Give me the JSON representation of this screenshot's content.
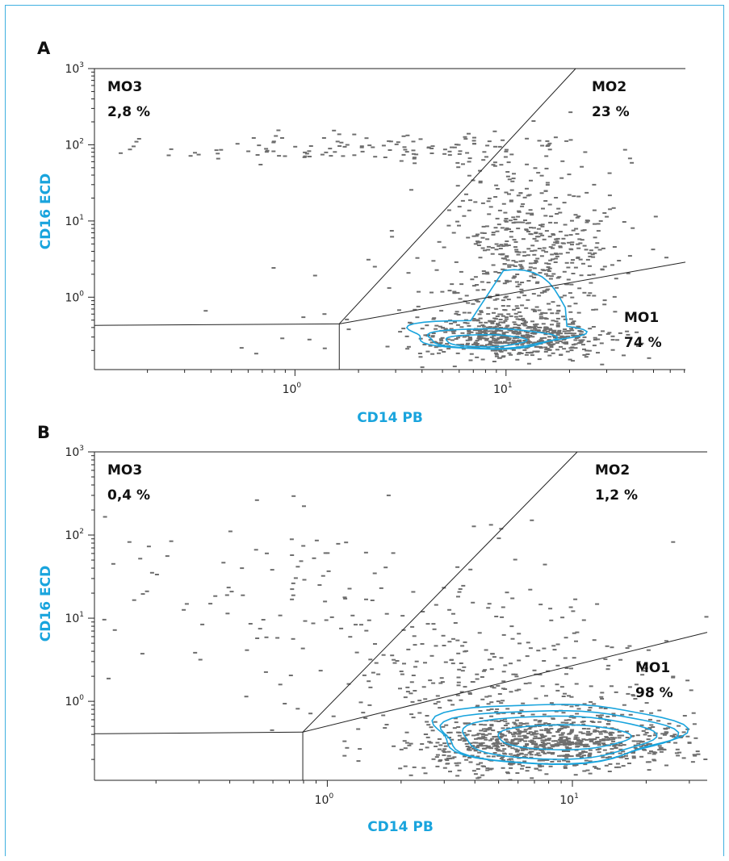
{
  "colors": {
    "frame": "#3fb0e0",
    "axis_title": "#19a4dd",
    "events": "#6e6e6e",
    "contour": "#19a4dd",
    "gate_line": "#222222"
  },
  "chart_data": [
    {
      "panel": "A",
      "type": "scatter",
      "subtype": "flow-cytometry dot plot with contours",
      "xlabel": "CD14 PB",
      "ylabel": "CD16 ECD",
      "x_scale": "log",
      "y_scale": "log",
      "xlim_log10": [
        -0.95,
        1.85
      ],
      "ylim_log10": [
        -0.95,
        3
      ],
      "x_ticks": [
        {
          "base": "10",
          "exp": "0",
          "log10": 0
        },
        {
          "base": "10",
          "exp": "1",
          "log10": 1
        }
      ],
      "y_ticks": [
        {
          "base": "10",
          "exp": "0",
          "log10": 0
        },
        {
          "base": "10",
          "exp": "1",
          "log10": 1
        },
        {
          "base": "10",
          "exp": "2",
          "log10": 2
        },
        {
          "base": "10",
          "exp": "3",
          "log10": 3
        }
      ],
      "gates": [
        {
          "name": "MO3",
          "value": "2,8 %"
        },
        {
          "name": "MO2",
          "value": "23 %"
        },
        {
          "name": "MO1",
          "value": "74 %"
        }
      ],
      "gate_vertex_log10": [
        0.21,
        -0.35
      ],
      "gate_lines_log10": {
        "left": [
          [
            -0.95,
            -0.37
          ],
          [
            0.21,
            -0.35
          ]
        ],
        "vertical": [
          [
            0.21,
            -0.95
          ],
          [
            0.21,
            -0.35
          ]
        ],
        "diagonal": [
          [
            0.21,
            -0.35
          ],
          [
            1.33,
            3.0
          ]
        ],
        "lower": [
          [
            0.21,
            -0.35
          ],
          [
            1.85,
            0.46
          ]
        ]
      },
      "populations": [
        {
          "mx": 1.02,
          "my": -0.52,
          "sx": 0.22,
          "sy": 0.14,
          "n": 560
        },
        {
          "mx": 1.12,
          "my": 0.55,
          "sx": 0.2,
          "sy": 0.6,
          "n": 520
        },
        {
          "mx": 0.45,
          "my": 1.95,
          "sx": 0.55,
          "sy": 0.1,
          "n": 140
        },
        {
          "mx": 0.6,
          "my": -0.1,
          "sx": 0.5,
          "sy": 0.5,
          "n": 60
        }
      ],
      "contours": [
        {
          "cx": 0.93,
          "cy": -0.48,
          "rx": 0.4,
          "ry": 0.19,
          "wobble": 0.1,
          "extra": [
            1.17,
            0.3
          ]
        },
        {
          "cx": 0.92,
          "cy": -0.54,
          "rx": 0.3,
          "ry": 0.13,
          "wobble": 0.06
        },
        {
          "cx": 0.9,
          "cy": -0.57,
          "rx": 0.19,
          "ry": 0.08,
          "wobble": 0.04
        }
      ]
    },
    {
      "panel": "B",
      "type": "scatter",
      "subtype": "flow-cytometry dot plot with contours",
      "xlabel": "CD14 PB",
      "ylabel": "CD16 ECD",
      "x_scale": "log",
      "y_scale": "log",
      "xlim_log10": [
        -0.95,
        1.55
      ],
      "ylim_log10": [
        -0.95,
        3
      ],
      "x_ticks": [
        {
          "base": "10",
          "exp": "0",
          "log10": 0
        },
        {
          "base": "10",
          "exp": "1",
          "log10": 1
        }
      ],
      "y_ticks": [
        {
          "base": "10",
          "exp": "0",
          "log10": 0
        },
        {
          "base": "10",
          "exp": "1",
          "log10": 1
        },
        {
          "base": "10",
          "exp": "2",
          "log10": 2
        },
        {
          "base": "10",
          "exp": "3",
          "log10": 3
        }
      ],
      "gates": [
        {
          "name": "MO3",
          "value": "0,4 %"
        },
        {
          "name": "MO2",
          "value": "1,2 %"
        },
        {
          "name": "MO1",
          "value": "98 %"
        }
      ],
      "gate_vertex_log10": [
        -0.1,
        -0.37
      ],
      "gate_lines_log10": {
        "left": [
          [
            -0.95,
            -0.39
          ],
          [
            -0.1,
            -0.37
          ]
        ],
        "vertical": [
          [
            -0.1,
            -0.95
          ],
          [
            -0.1,
            -0.37
          ]
        ],
        "diagonal": [
          [
            -0.1,
            -0.37
          ],
          [
            1.02,
            3.0
          ]
        ],
        "lower": [
          [
            -0.1,
            -0.37
          ],
          [
            1.55,
            0.83
          ]
        ]
      },
      "populations": [
        {
          "mx": 0.9,
          "my": -0.5,
          "sx": 0.28,
          "sy": 0.16,
          "n": 850
        },
        {
          "mx": 0.75,
          "my": 0.2,
          "sx": 0.4,
          "sy": 0.5,
          "n": 300
        },
        {
          "mx": 0.0,
          "my": 1.3,
          "sx": 0.55,
          "sy": 0.5,
          "n": 130
        }
      ],
      "contours": [
        {
          "cx": 0.92,
          "cy": -0.38,
          "rx": 0.5,
          "ry": 0.36,
          "wobble": 0.08
        },
        {
          "cx": 0.92,
          "cy": -0.42,
          "rx": 0.47,
          "ry": 0.32,
          "wobble": 0.07
        },
        {
          "cx": 0.93,
          "cy": -0.43,
          "rx": 0.39,
          "ry": 0.26,
          "wobble": 0.05
        },
        {
          "cx": 0.96,
          "cy": -0.43,
          "rx": 0.27,
          "ry": 0.15,
          "wobble": 0.03
        }
      ]
    }
  ]
}
